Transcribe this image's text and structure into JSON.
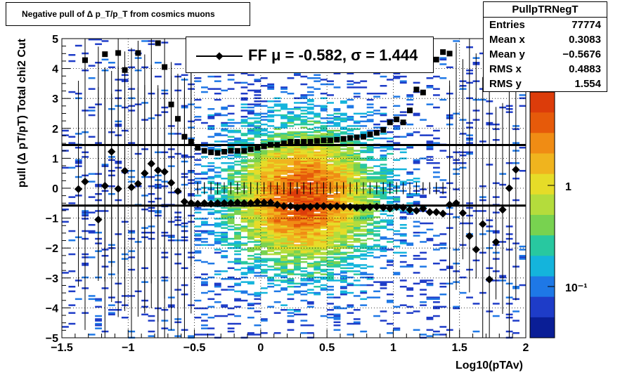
{
  "title": "Negative pull of Δ p_T/p_T from cosmics muons",
  "stats": {
    "name": "PullpTRNegT",
    "rows": [
      {
        "label": "Entries",
        "value": "77774"
      },
      {
        "label": "Mean x",
        "value": "0.3083"
      },
      {
        "label": "Mean y",
        "value": "−0.5676"
      },
      {
        "label": "RMS x",
        "value": "0.4883"
      },
      {
        "label": "RMS y",
        "value": "1.554"
      }
    ]
  },
  "legend": {
    "entry": "FF μ = -0.582, σ =   1.444"
  },
  "colors": {
    "mean_line": "#000000",
    "markers": "#000000"
  },
  "chart_data": {
    "type": "heatmap",
    "xlabel": "Log10(pTAv)",
    "ylabel": "pull (Δ pT/pT)  Total chi2 Cut",
    "xlim": [
      -1.5,
      2
    ],
    "ylim": [
      -5,
      5
    ],
    "x_ticks": [
      -1.5,
      -1,
      -0.5,
      0,
      0.5,
      1,
      1.5,
      2
    ],
    "x_tick_labels": [
      "−1.5",
      "−1",
      "−0.5",
      "0",
      "0.5",
      "1",
      "1.5",
      "2"
    ],
    "y_ticks": [
      -5,
      -4,
      -3,
      -2,
      -1,
      0,
      1,
      2,
      3,
      4,
      5
    ],
    "y_tick_labels": [
      "−5",
      "−4",
      "−3",
      "−2",
      "−1",
      "0",
      "1",
      "2",
      "3",
      "4",
      "5"
    ],
    "z_scale": "log",
    "z_tick_labels": [
      "1",
      "10⁻¹"
    ],
    "grid": true,
    "fit_lines": [
      {
        "name": "mean",
        "y": -0.582
      },
      {
        "name": "sigma",
        "y": 1.444
      }
    ],
    "mean_profile": {
      "x": [
        -1.375,
        -1.325,
        -1.225,
        -1.175,
        -1.125,
        -1.075,
        -1.025,
        -0.975,
        -0.925,
        -0.875,
        -0.825,
        -0.775,
        -0.725,
        -0.675,
        -0.625,
        -0.575,
        -0.525,
        -0.475,
        -0.425,
        -0.375,
        -0.325,
        -0.275,
        -0.225,
        -0.175,
        -0.125,
        -0.075,
        -0.025,
        0.025,
        0.075,
        0.125,
        0.175,
        0.225,
        0.275,
        0.325,
        0.375,
        0.425,
        0.475,
        0.525,
        0.575,
        0.625,
        0.675,
        0.725,
        0.775,
        0.825,
        0.875,
        0.925,
        0.975,
        1.025,
        1.075,
        1.125,
        1.175,
        1.225,
        1.275,
        1.325,
        1.375,
        1.425,
        1.475,
        1.525,
        1.575,
        1.625,
        1.675,
        1.725,
        1.775,
        1.825,
        1.875,
        1.925
      ],
      "y": [
        -0.03,
        0.22,
        -1.05,
        0.08,
        1.22,
        -0.02,
        0.58,
        0.03,
        0.15,
        0.5,
        0.82,
        0.6,
        0.55,
        0.18,
        -0.1,
        -0.45,
        -0.5,
        -0.52,
        -0.5,
        -0.52,
        -0.5,
        -0.5,
        -0.5,
        -0.48,
        -0.5,
        -0.5,
        -0.46,
        -0.48,
        -0.48,
        -0.55,
        -0.6,
        -0.6,
        -0.65,
        -0.62,
        -0.62,
        -0.6,
        -0.6,
        -0.62,
        -0.6,
        -0.62,
        -0.62,
        -0.65,
        -0.65,
        -0.63,
        -0.62,
        -0.65,
        -0.68,
        -0.63,
        -0.65,
        -0.72,
        -0.75,
        -0.68,
        -0.8,
        -0.8,
        -0.85,
        -0.55,
        -0.5,
        -0.83,
        -1.6,
        -2.05,
        -1.2,
        -3.05,
        -1.8,
        -0.72,
        0.0,
        0.62
      ]
    },
    "rms_profile": {
      "x": [
        -1.325,
        -1.225,
        -1.175,
        -1.125,
        -1.075,
        -1.025,
        -0.975,
        -0.925,
        -0.875,
        -0.825,
        -0.775,
        -0.725,
        -0.675,
        -0.625,
        -0.575,
        -0.525,
        -0.475,
        -0.425,
        -0.375,
        -0.325,
        -0.275,
        -0.225,
        -0.175,
        -0.125,
        -0.075,
        -0.025,
        0.025,
        0.075,
        0.125,
        0.175,
        0.225,
        0.275,
        0.325,
        0.375,
        0.425,
        0.475,
        0.525,
        0.575,
        0.625,
        0.675,
        0.725,
        0.775,
        0.825,
        0.875,
        0.925,
        0.975,
        1.025,
        1.075,
        1.125,
        1.175,
        1.225,
        1.275,
        1.325,
        1.375,
        1.425
      ],
      "y": [
        4.28,
        5.2,
        4.48,
        5.1,
        4.52,
        3.95,
        5.1,
        4.52,
        5.3,
        5.4,
        4.85,
        4.05,
        2.8,
        2.32,
        1.72,
        1.55,
        1.35,
        1.25,
        1.2,
        1.18,
        1.22,
        1.25,
        1.25,
        1.25,
        1.3,
        1.35,
        1.4,
        1.45,
        1.45,
        1.5,
        1.55,
        1.55,
        1.55,
        1.55,
        1.58,
        1.6,
        1.6,
        1.62,
        1.65,
        1.68,
        1.7,
        1.72,
        1.8,
        1.85,
        1.95,
        2.2,
        2.3,
        2.2,
        2.6,
        3.3,
        3.2,
        4.4,
        4.3,
        4.55,
        4.5
      ]
    }
  }
}
